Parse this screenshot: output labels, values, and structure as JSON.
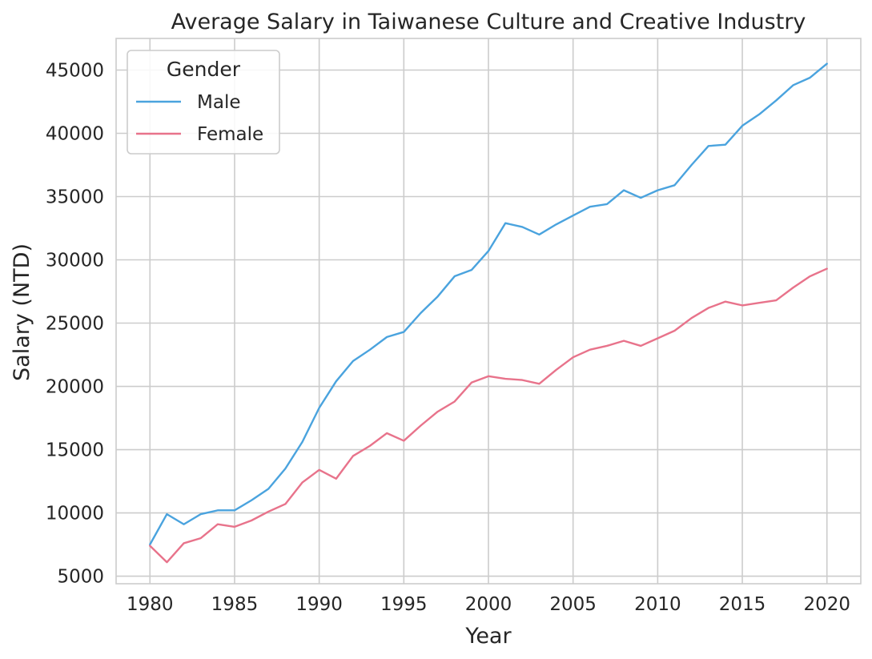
{
  "chart_data": {
    "type": "line",
    "title": "Average Salary in Taiwanese Culture and Creative Industry",
    "xlabel": "Year",
    "ylabel": "Salary (NTD)",
    "xlim": [
      1978,
      2022
    ],
    "ylim": [
      4400,
      47500
    ],
    "x_ticks": [
      1980,
      1985,
      1990,
      1995,
      2000,
      2005,
      2010,
      2015,
      2020
    ],
    "y_ticks": [
      5000,
      10000,
      15000,
      20000,
      25000,
      30000,
      35000,
      40000,
      45000
    ],
    "grid": true,
    "legend": {
      "title": "Gender",
      "placement": "upper-left"
    },
    "x": [
      1980,
      1981,
      1982,
      1983,
      1984,
      1985,
      1986,
      1987,
      1988,
      1989,
      1990,
      1991,
      1992,
      1993,
      1994,
      1995,
      1996,
      1997,
      1998,
      1999,
      2000,
      2001,
      2002,
      2003,
      2004,
      2005,
      2006,
      2007,
      2008,
      2009,
      2010,
      2011,
      2012,
      2013,
      2014,
      2015,
      2016,
      2017,
      2018,
      2019,
      2020
    ],
    "series": [
      {
        "name": "Male",
        "color": "#4aa3de",
        "values": [
          7500,
          9900,
          9100,
          9900,
          10200,
          10200,
          11000,
          11900,
          13500,
          15600,
          18300,
          20400,
          22000,
          22900,
          23900,
          24300,
          25800,
          27100,
          28700,
          29200,
          30700,
          32900,
          32600,
          32000,
          32800,
          33500,
          34200,
          34400,
          35500,
          34900,
          35500,
          35900,
          37500,
          39000,
          39100,
          40600,
          41500,
          42600,
          43800,
          44400,
          45500
        ]
      },
      {
        "name": "Female",
        "color": "#e8738b",
        "values": [
          7400,
          6100,
          7600,
          8000,
          9100,
          8900,
          9400,
          10100,
          10700,
          12400,
          13400,
          12700,
          14500,
          15300,
          16300,
          15700,
          16900,
          18000,
          18800,
          20300,
          20800,
          20600,
          20500,
          20200,
          21300,
          22300,
          22900,
          23200,
          23600,
          23200,
          23800,
          24400,
          25400,
          26200,
          26700,
          26400,
          26600,
          26800,
          27800,
          28700,
          29300
        ]
      }
    ]
  }
}
